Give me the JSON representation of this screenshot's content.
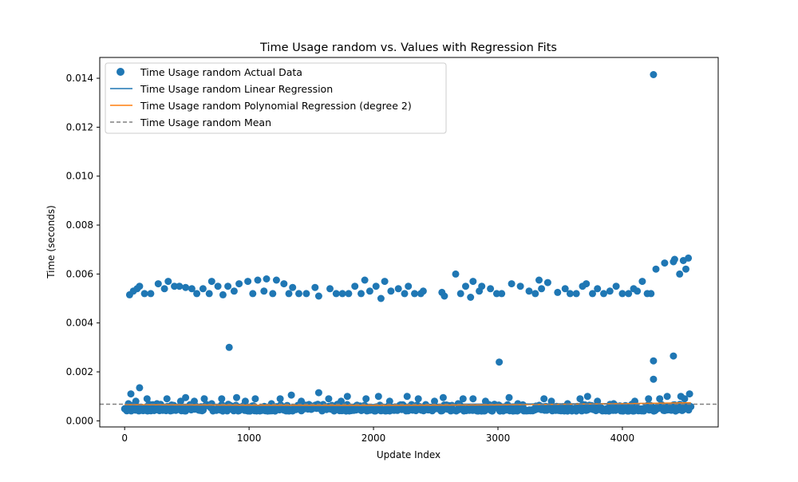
{
  "chart_data": {
    "type": "scatter",
    "title": "Time Usage random vs. Values with Regression Fits",
    "xlabel": "Update Index",
    "ylabel": "Time (seconds)",
    "xlim": [
      -200,
      4770
    ],
    "ylim": [
      -0.00025,
      0.01485
    ],
    "xticks": [
      0,
      1000,
      2000,
      3000,
      4000
    ],
    "xtick_labels": [
      "0",
      "1000",
      "2000",
      "3000",
      "4000"
    ],
    "yticks": [
      0.0,
      0.002,
      0.004,
      0.006,
      0.008,
      0.01,
      0.012,
      0.014
    ],
    "ytick_labels": [
      "0.000",
      "0.002",
      "0.004",
      "0.006",
      "0.008",
      "0.010",
      "0.012",
      "0.014"
    ],
    "grid": false,
    "legend_position": "top-left",
    "colors": {
      "scatter": "#1f77b4",
      "linear": "#1f77b4",
      "poly": "#ff7f0e",
      "mean": "#808080"
    },
    "series": [
      {
        "name": "Time Usage random Actual Data",
        "kind": "scatter",
        "outliers": [
          [
            50,
            0.0011
          ],
          [
            120,
            0.00135
          ],
          [
            840,
            0.003
          ],
          [
            3010,
            0.0024
          ],
          [
            4250,
            0.00245
          ],
          [
            4250,
            0.0017
          ],
          [
            4410,
            0.00265
          ],
          [
            4250,
            0.01415
          ],
          [
            40,
            0.00515
          ],
          [
            70,
            0.0053
          ],
          [
            100,
            0.0054
          ],
          [
            120,
            0.0055
          ],
          [
            160,
            0.0052
          ],
          [
            210,
            0.0052
          ],
          [
            270,
            0.0056
          ],
          [
            320,
            0.0054
          ],
          [
            350,
            0.0057
          ],
          [
            400,
            0.0055
          ],
          [
            440,
            0.0055
          ],
          [
            490,
            0.00545
          ],
          [
            540,
            0.0054
          ],
          [
            580,
            0.0052
          ],
          [
            630,
            0.0054
          ],
          [
            680,
            0.0052
          ],
          [
            700,
            0.0057
          ],
          [
            750,
            0.0055
          ],
          [
            790,
            0.00515
          ],
          [
            830,
            0.0055
          ],
          [
            880,
            0.0053
          ],
          [
            920,
            0.0056
          ],
          [
            990,
            0.0057
          ],
          [
            1030,
            0.0052
          ],
          [
            1070,
            0.00575
          ],
          [
            1120,
            0.0053
          ],
          [
            1140,
            0.0058
          ],
          [
            1190,
            0.0052
          ],
          [
            1220,
            0.00575
          ],
          [
            1280,
            0.0056
          ],
          [
            1320,
            0.0052
          ],
          [
            1350,
            0.00545
          ],
          [
            1400,
            0.0052
          ],
          [
            1460,
            0.0052
          ],
          [
            1530,
            0.00545
          ],
          [
            1560,
            0.0051
          ],
          [
            1650,
            0.0054
          ],
          [
            1700,
            0.0052
          ],
          [
            1750,
            0.0052
          ],
          [
            1800,
            0.0052
          ],
          [
            1850,
            0.0055
          ],
          [
            1900,
            0.0052
          ],
          [
            1930,
            0.00575
          ],
          [
            1970,
            0.0053
          ],
          [
            2020,
            0.0055
          ],
          [
            2060,
            0.005
          ],
          [
            2090,
            0.0057
          ],
          [
            2140,
            0.0053
          ],
          [
            2200,
            0.0054
          ],
          [
            2250,
            0.0052
          ],
          [
            2280,
            0.0055
          ],
          [
            2330,
            0.0052
          ],
          [
            2380,
            0.0052
          ],
          [
            2400,
            0.0053
          ],
          [
            2550,
            0.00525
          ],
          [
            2570,
            0.0051
          ],
          [
            2660,
            0.006
          ],
          [
            2700,
            0.0052
          ],
          [
            2740,
            0.0055
          ],
          [
            2780,
            0.00505
          ],
          [
            2800,
            0.0057
          ],
          [
            2850,
            0.0053
          ],
          [
            2870,
            0.0055
          ],
          [
            2940,
            0.0054
          ],
          [
            2990,
            0.0052
          ],
          [
            3030,
            0.0052
          ],
          [
            3110,
            0.0056
          ],
          [
            3180,
            0.0055
          ],
          [
            3250,
            0.0053
          ],
          [
            3300,
            0.0052
          ],
          [
            3330,
            0.00575
          ],
          [
            3350,
            0.0054
          ],
          [
            3400,
            0.00565
          ],
          [
            3480,
            0.00525
          ],
          [
            3540,
            0.0054
          ],
          [
            3580,
            0.0052
          ],
          [
            3630,
            0.0052
          ],
          [
            3680,
            0.0055
          ],
          [
            3710,
            0.0056
          ],
          [
            3760,
            0.0052
          ],
          [
            3800,
            0.0054
          ],
          [
            3850,
            0.0052
          ],
          [
            3900,
            0.0053
          ],
          [
            3950,
            0.0055
          ],
          [
            4000,
            0.0052
          ],
          [
            4050,
            0.0052
          ],
          [
            4090,
            0.0054
          ],
          [
            4120,
            0.0053
          ],
          [
            4160,
            0.0057
          ],
          [
            4200,
            0.0052
          ],
          [
            4230,
            0.0052
          ],
          [
            4270,
            0.0062
          ],
          [
            4340,
            0.00645
          ],
          [
            4410,
            0.0065
          ],
          [
            4420,
            0.0066
          ],
          [
            4460,
            0.006
          ],
          [
            4490,
            0.00655
          ],
          [
            4510,
            0.0062
          ],
          [
            4530,
            0.00665
          ],
          [
            30,
            0.0007
          ],
          [
            90,
            0.0008
          ],
          [
            180,
            0.0009
          ],
          [
            260,
            0.0007
          ],
          [
            340,
            0.0009
          ],
          [
            450,
            0.0008
          ],
          [
            490,
            0.00095
          ],
          [
            560,
            0.0008
          ],
          [
            640,
            0.0009
          ],
          [
            700,
            0.0007
          ],
          [
            780,
            0.0009
          ],
          [
            900,
            0.00095
          ],
          [
            970,
            0.0008
          ],
          [
            1050,
            0.0009
          ],
          [
            1180,
            0.0007
          ],
          [
            1250,
            0.0009
          ],
          [
            1340,
            0.00105
          ],
          [
            1420,
            0.0008
          ],
          [
            1560,
            0.00115
          ],
          [
            1640,
            0.0009
          ],
          [
            1740,
            0.0008
          ],
          [
            1790,
            0.001
          ],
          [
            1940,
            0.0009
          ],
          [
            2040,
            0.001
          ],
          [
            2130,
            0.0008
          ],
          [
            2270,
            0.001
          ],
          [
            2360,
            0.0009
          ],
          [
            2490,
            0.0008
          ],
          [
            2560,
            0.00095
          ],
          [
            2680,
            0.0007
          ],
          [
            2720,
            0.0009
          ],
          [
            2800,
            0.0009
          ],
          [
            2900,
            0.0008
          ],
          [
            3090,
            0.00095
          ],
          [
            3160,
            0.0007
          ],
          [
            3370,
            0.0009
          ],
          [
            3430,
            0.0008
          ],
          [
            3560,
            0.0007
          ],
          [
            3660,
            0.0009
          ],
          [
            3720,
            0.001
          ],
          [
            3800,
            0.0008
          ],
          [
            3930,
            0.0007
          ],
          [
            4100,
            0.0008
          ],
          [
            4210,
            0.0009
          ],
          [
            4300,
            0.0009
          ],
          [
            4360,
            0.001
          ],
          [
            4470,
            0.001
          ],
          [
            4540,
            0.0011
          ],
          [
            4500,
            0.0009
          ]
        ],
        "dense_band": {
          "x_start": 0,
          "x_end": 4550,
          "count": 520,
          "y_min": 0.0004,
          "y_max": 0.00068
        }
      },
      {
        "name": "Time Usage random Linear Regression",
        "kind": "line",
        "x": [
          0,
          4550
        ],
        "y": [
          0.00062,
          0.00072
        ]
      },
      {
        "name": "Time Usage random Polynomial Regression (degree 2)",
        "kind": "line",
        "x": [
          0,
          1000,
          2000,
          3000,
          4000,
          4550
        ],
        "y": [
          0.00066,
          0.00064,
          0.00063,
          0.00065,
          0.0007,
          0.00074
        ]
      },
      {
        "name": "Time Usage random Mean",
        "kind": "hline",
        "y": 0.00068
      }
    ]
  }
}
